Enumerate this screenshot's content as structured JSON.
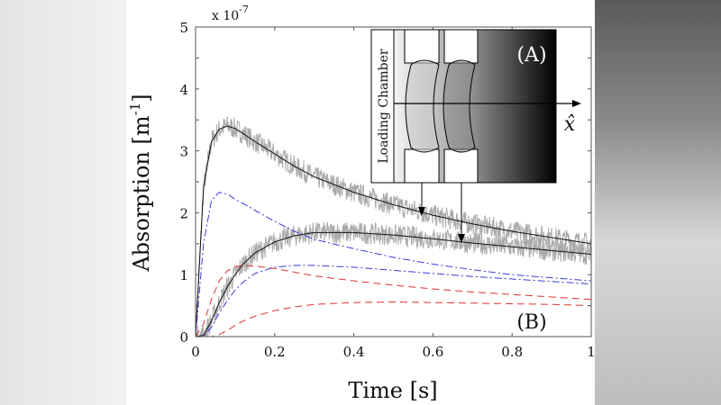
{
  "chart_data": {
    "type": "line",
    "xlabel": "Time [s]",
    "ylabel": "Absorption [m",
    "ylabel_sup": "-1",
    "ylabel_close": "]",
    "multiplier": "x 10",
    "multiplier_exp": "-7",
    "xlim": [
      0,
      1
    ],
    "ylim": [
      0,
      5
    ],
    "xticks": [
      "0",
      "0.2",
      "0.4",
      "0.6",
      "0.8",
      "1"
    ],
    "yticks": [
      "0",
      "1",
      "2",
      "3",
      "4",
      "5"
    ],
    "grid": false,
    "x": [
      0,
      0.02,
      0.04,
      0.06,
      0.08,
      0.1,
      0.12,
      0.15,
      0.2,
      0.25,
      0.3,
      0.4,
      0.5,
      0.6,
      0.7,
      0.8,
      0.9,
      1.0
    ],
    "series": [
      {
        "style": "solid",
        "color": "#111111",
        "noisy_data": true,
        "values": [
          0,
          2.4,
          3.15,
          3.35,
          3.4,
          3.36,
          3.28,
          3.15,
          2.95,
          2.75,
          2.58,
          2.33,
          2.13,
          1.96,
          1.82,
          1.7,
          1.6,
          1.5
        ]
      },
      {
        "style": "solid",
        "color": "#111111",
        "noisy_data": true,
        "values": [
          0,
          0.02,
          0.25,
          0.55,
          0.8,
          1.0,
          1.17,
          1.35,
          1.53,
          1.63,
          1.68,
          1.68,
          1.64,
          1.58,
          1.51,
          1.45,
          1.39,
          1.33
        ]
      },
      {
        "style": "dashdot",
        "color": "#3a3ad8",
        "values": [
          0,
          1.5,
          2.2,
          2.33,
          2.3,
          2.22,
          2.15,
          2.04,
          1.86,
          1.7,
          1.57,
          1.42,
          1.28,
          1.17,
          1.08,
          1.0,
          0.95,
          0.9
        ]
      },
      {
        "style": "dashdot",
        "color": "#3a3ad8",
        "values": [
          0,
          0.0,
          0.15,
          0.38,
          0.58,
          0.75,
          0.88,
          1.02,
          1.12,
          1.15,
          1.15,
          1.12,
          1.07,
          1.02,
          0.97,
          0.93,
          0.89,
          0.85
        ]
      },
      {
        "style": "dashed",
        "color": "#e03030",
        "values": [
          0,
          0.2,
          0.6,
          0.9,
          1.06,
          1.13,
          1.15,
          1.14,
          1.1,
          1.04,
          0.98,
          0.9,
          0.83,
          0.77,
          0.72,
          0.68,
          0.64,
          0.6
        ]
      },
      {
        "style": "dashed",
        "color": "#e03030",
        "values": [
          0,
          0,
          0.0,
          0.03,
          0.1,
          0.18,
          0.25,
          0.33,
          0.42,
          0.48,
          0.52,
          0.55,
          0.56,
          0.55,
          0.54,
          0.53,
          0.52,
          0.5
        ]
      }
    ],
    "annotations": {
      "inset_label": "(A)",
      "plot_label": "(B)",
      "chamber_label": "Loading Chamber",
      "axis_label": "x̂"
    }
  }
}
